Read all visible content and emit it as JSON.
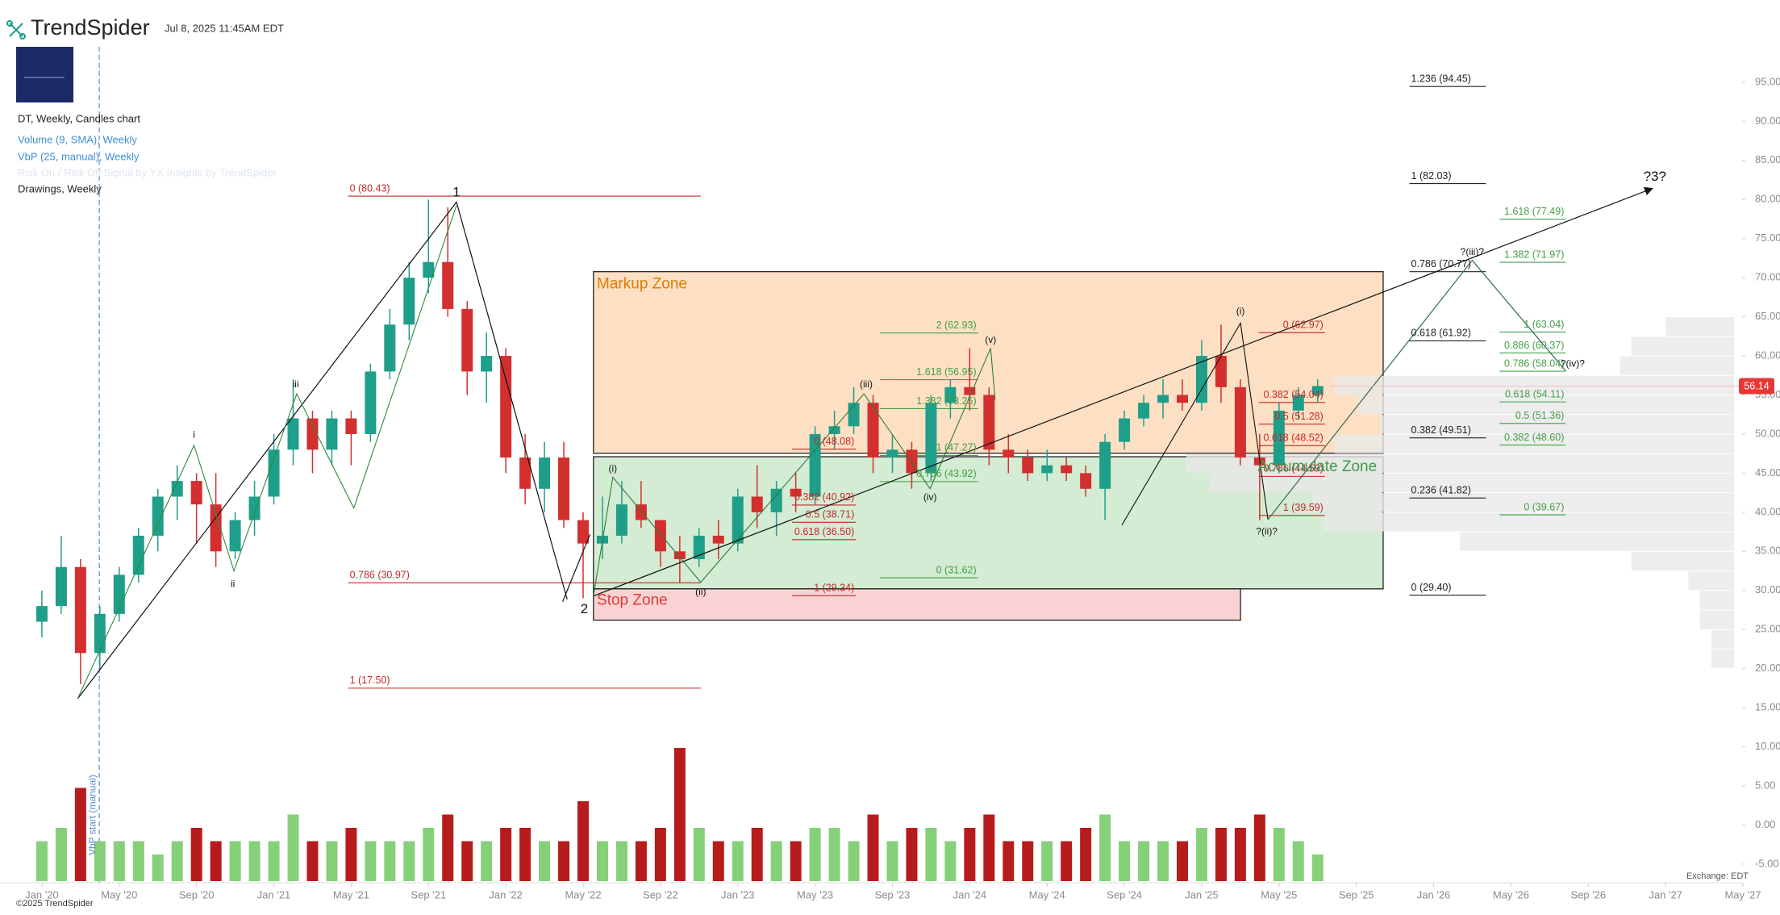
{
  "header": {
    "brand": "TrendSpider",
    "timestamp": "Jul 8, 2025 11:45AM EDT",
    "legend": [
      "DT, Weekly, Candles chart",
      "Volume (9, SMA), Weekly",
      "VbP (25, manual), Weekly",
      "Risk On / Risk Off Signal by YX Insights by TrendSpider",
      "Drawings, Weekly"
    ]
  },
  "footer": {
    "copyright": "©2025 TrendSpider",
    "exchange": "Exchange: EDT"
  },
  "chart_data": {
    "type": "candlestick",
    "x": [
      "2020-01",
      "2020-02",
      "2020-03",
      "2020-04",
      "2020-05",
      "2020-06",
      "2020-07",
      "2020-08",
      "2020-09",
      "2020-10",
      "2020-11",
      "2020-12",
      "2021-01",
      "2021-02",
      "2021-03",
      "2021-04",
      "2021-05",
      "2021-06",
      "2021-07",
      "2021-08",
      "2021-09",
      "2021-10",
      "2021-11",
      "2021-12",
      "2022-01",
      "2022-02",
      "2022-03",
      "2022-04",
      "2022-05",
      "2022-06",
      "2022-07",
      "2022-08",
      "2022-09",
      "2022-10",
      "2022-11",
      "2022-12",
      "2023-01",
      "2023-02",
      "2023-03",
      "2023-04",
      "2023-05",
      "2023-06",
      "2023-07",
      "2023-08",
      "2023-09",
      "2023-10",
      "2023-11",
      "2023-12",
      "2024-01",
      "2024-02",
      "2024-03",
      "2024-04",
      "2024-05",
      "2024-06",
      "2024-07",
      "2024-08",
      "2024-09",
      "2024-10",
      "2024-11",
      "2024-12",
      "2025-01",
      "2025-02",
      "2025-03",
      "2025-04",
      "2025-05",
      "2025-06",
      "2025-07"
    ],
    "open": [
      26,
      28,
      33,
      22,
      27,
      32,
      37,
      42,
      44,
      41,
      35,
      39,
      42,
      48,
      52,
      48,
      52,
      50,
      58,
      64,
      70,
      72,
      66,
      58,
      60,
      47,
      43,
      47,
      39,
      36,
      37,
      41,
      39,
      35,
      34,
      37,
      36,
      42,
      40,
      43,
      42,
      50,
      51,
      54,
      47,
      48,
      45,
      54,
      56,
      55,
      48,
      47,
      45,
      46,
      45,
      43,
      49,
      52,
      54,
      55,
      54,
      60,
      56,
      47,
      46,
      53,
      55
    ],
    "high": [
      30,
      37,
      34,
      28,
      33,
      38,
      43,
      46,
      45,
      45,
      40,
      44,
      50,
      57,
      53,
      53,
      53,
      59,
      66,
      72,
      80,
      79,
      67,
      63,
      61,
      50,
      49,
      49,
      40,
      42,
      44,
      44,
      39,
      37,
      38,
      39,
      43,
      46,
      44,
      45,
      51,
      53,
      56,
      55,
      50,
      49,
      55,
      57,
      61,
      56,
      50,
      48,
      48,
      47,
      46,
      50,
      53,
      55,
      57,
      57,
      62,
      64,
      57,
      50,
      54,
      56,
      57
    ],
    "low": [
      24,
      27,
      18,
      20,
      26,
      31,
      35,
      39,
      36,
      33,
      34,
      37,
      41,
      46,
      45,
      46,
      46,
      49,
      57,
      62,
      68,
      65,
      55,
      54,
      45,
      41,
      40,
      38,
      29,
      34,
      36,
      38,
      33,
      31,
      33,
      34,
      35,
      38,
      37,
      40,
      41,
      48,
      50,
      45,
      45,
      43,
      44,
      52,
      53,
      46,
      45,
      44,
      44,
      44,
      42,
      39,
      48,
      51,
      52,
      53,
      53,
      54,
      46,
      39,
      45,
      52,
      54
    ],
    "close": [
      28,
      33,
      22,
      27,
      32,
      37,
      42,
      44,
      41,
      35,
      39,
      42,
      48,
      52,
      48,
      52,
      50,
      58,
      64,
      70,
      72,
      66,
      58,
      60,
      47,
      43,
      47,
      39,
      36,
      37,
      41,
      39,
      35,
      34,
      37,
      36,
      42,
      40,
      43,
      42,
      50,
      51,
      54,
      47,
      48,
      45,
      54,
      56,
      55,
      48,
      47,
      45,
      46,
      45,
      43,
      49,
      52,
      54,
      55,
      54,
      60,
      56,
      47,
      46,
      53,
      55,
      56.14
    ],
    "volume": [
      3,
      4,
      7,
      3,
      3,
      3,
      2,
      3,
      4,
      3,
      3,
      3,
      3,
      5,
      3,
      3,
      4,
      3,
      3,
      3,
      4,
      5,
      3,
      3,
      4,
      4,
      3,
      3,
      6,
      3,
      3,
      3,
      4,
      10,
      4,
      3,
      3,
      4,
      3,
      3,
      4,
      4,
      3,
      5,
      3,
      4,
      4,
      3,
      4,
      5,
      3,
      3,
      3,
      3,
      4,
      5,
      3,
      3,
      3,
      3,
      4,
      4,
      4,
      5,
      4,
      3,
      2
    ],
    "up_color": "#1f9e8a",
    "down_color": "#d32f2f",
    "volume_up_color": "#86d07a",
    "volume_down_color": "#b71c1c",
    "xlim": [
      "2019-11",
      "2027-06"
    ],
    "xticks": [
      {
        "value": "2020-01",
        "label": "Jan '20"
      },
      {
        "value": "2020-05",
        "label": "May '20"
      },
      {
        "value": "2020-09",
        "label": "Sep '20"
      },
      {
        "value": "2021-01",
        "label": "Jan '21"
      },
      {
        "value": "2021-05",
        "label": "May '21"
      },
      {
        "value": "2021-09",
        "label": "Sep '21"
      },
      {
        "value": "2022-01",
        "label": "Jan '22"
      },
      {
        "value": "2022-05",
        "label": "May '22"
      },
      {
        "value": "2022-09",
        "label": "Sep '22"
      },
      {
        "value": "2023-01",
        "label": "Jan '23"
      },
      {
        "value": "2023-05",
        "label": "May '23"
      },
      {
        "value": "2023-09",
        "label": "Sep '23"
      },
      {
        "value": "2024-01",
        "label": "Jan '24"
      },
      {
        "value": "2024-05",
        "label": "May '24"
      },
      {
        "value": "2024-09",
        "label": "Sep '24"
      },
      {
        "value": "2025-01",
        "label": "Jan '25"
      },
      {
        "value": "2025-05",
        "label": "May '25"
      },
      {
        "value": "2025-09",
        "label": "Sep '25"
      },
      {
        "value": "2026-01",
        "label": "Jan '26"
      },
      {
        "value": "2026-05",
        "label": "May '26"
      },
      {
        "value": "2026-09",
        "label": "Sep '26"
      },
      {
        "value": "2027-01",
        "label": "Jan '27"
      },
      {
        "value": "2027-05",
        "label": "May '27"
      }
    ],
    "ylim": [
      -7,
      97
    ],
    "yticks": [
      {
        "value": 95,
        "label": "95.00"
      },
      {
        "value": 90,
        "label": "90.00"
      },
      {
        "value": 85,
        "label": "85.00"
      },
      {
        "value": 80,
        "label": "80.00"
      },
      {
        "value": 75,
        "label": "75.00"
      },
      {
        "value": 70,
        "label": "70.00"
      },
      {
        "value": 65,
        "label": "65.00"
      },
      {
        "value": 60,
        "label": "60.00"
      },
      {
        "value": 55,
        "label": "55.00"
      },
      {
        "value": 50,
        "label": "50.00"
      },
      {
        "value": 45,
        "label": "45.00"
      },
      {
        "value": 40,
        "label": "40.00"
      },
      {
        "value": 35,
        "label": "35.00"
      },
      {
        "value": 30,
        "label": "30.00"
      },
      {
        "value": 25,
        "label": "25.00"
      },
      {
        "value": 20,
        "label": "20.00"
      },
      {
        "value": 15,
        "label": "15.00"
      },
      {
        "value": 10,
        "label": "10.00"
      },
      {
        "value": 5,
        "label": "5.00"
      },
      {
        "value": 0,
        "label": "0.00"
      },
      {
        "value": -5,
        "label": "-5.00"
      }
    ],
    "vbp": {
      "bins": [
        20,
        22.5,
        25,
        27.5,
        30,
        32.5,
        35,
        37.5,
        40,
        42.5,
        45,
        47.5,
        50,
        52.5,
        55,
        57.5,
        60,
        62.5,
        65
      ],
      "values": [
        2,
        2,
        3,
        3,
        4,
        9,
        24,
        36,
        37,
        46,
        48,
        35,
        31,
        33,
        35,
        10,
        9,
        6
      ],
      "color": "#e9e9e9"
    },
    "vbp_start_label": "VbP start (manual)",
    "zones": [
      {
        "label": "Markup Zone",
        "top": 70.77,
        "bottom": 47.55,
        "color": "#fde0c4",
        "text_color": "#e07b00"
      },
      {
        "label": "Accumulate Zone",
        "top": 47.1,
        "bottom": 30.2,
        "color": "#d3ecd3",
        "text_color": "#3e9a4a"
      },
      {
        "label": "Stop Zone",
        "top": 30.2,
        "bottom": 26.2,
        "color": "#f9d3d3",
        "text_color": "#e53935"
      }
    ],
    "fibs": [
      {
        "color": "#c62828",
        "levels": [
          {
            "label": "0 (80.43)",
            "value": 80.43
          },
          {
            "label": "0.786 (30.97)",
            "value": 30.97
          },
          {
            "label": "1 (17.50)",
            "value": 17.5
          }
        ]
      },
      {
        "color": "#222222",
        "levels": [
          {
            "label": "1.236 (94.45)",
            "value": 94.45
          },
          {
            "label": "1 (82.03)",
            "value": 82.03
          },
          {
            "label": "0.786 (70.77)",
            "value": 70.77
          },
          {
            "label": "0.618 (61.92)",
            "value": 61.92
          },
          {
            "label": "0.382 (49.51)",
            "value": 49.51
          },
          {
            "label": "0.236 (41.82)",
            "value": 41.82
          },
          {
            "label": "0 (29.40)",
            "value": 29.4
          }
        ]
      },
      {
        "color": "#43a047",
        "levels": [
          {
            "label": "2 (62.93)",
            "value": 62.93
          },
          {
            "label": "1.618 (56.95)",
            "value": 56.95
          },
          {
            "label": "1.382 (53.25)",
            "value": 53.25
          },
          {
            "label": "1 (47.27)",
            "value": 47.27
          },
          {
            "label": "0.786 (43.92)",
            "value": 43.92
          },
          {
            "label": "0 (31.62)",
            "value": 31.62
          }
        ]
      },
      {
        "color": "#c62828",
        "levels": [
          {
            "label": "0 (48.08)",
            "value": 48.08
          },
          {
            "label": "0.382 (40.92)",
            "value": 40.92
          },
          {
            "label": "0.5 (38.71)",
            "value": 38.71
          },
          {
            "label": "0.618 (36.50)",
            "value": 36.5
          },
          {
            "label": "1 (29.34)",
            "value": 29.34
          }
        ]
      },
      {
        "color": "#c62828",
        "levels": [
          {
            "label": "0 (62.97)",
            "value": 62.97
          },
          {
            "label": "0.382 (54.04)",
            "value": 54.04
          },
          {
            "label": "0.5 (51.28)",
            "value": 51.28
          },
          {
            "label": "0.618 (48.52)",
            "value": 48.52
          },
          {
            "label": "0.786 (44.59)",
            "value": 44.59
          },
          {
            "label": "1 (39.59)",
            "value": 39.59
          }
        ]
      },
      {
        "color": "#43a047",
        "levels": [
          {
            "label": "1.618 (77.49)",
            "value": 77.49
          },
          {
            "label": "1.382 (71.97)",
            "value": 71.97
          },
          {
            "label": "1 (63.04)",
            "value": 63.04
          },
          {
            "label": "0.886 (60.37)",
            "value": 60.37
          },
          {
            "label": "0.786 (58.04)",
            "value": 58.04
          },
          {
            "label": "0.618 (54.11)",
            "value": 54.11
          },
          {
            "label": "0.5 (51.36)",
            "value": 51.36
          },
          {
            "label": "0.382 (48.60)",
            "value": 48.6
          },
          {
            "label": "0 (39.67)",
            "value": 39.67
          }
        ]
      }
    ],
    "wave_labels": [
      "1",
      "2",
      "i",
      "ii",
      "iii",
      "(i)",
      "(ii)",
      "(iii)",
      "(iv)",
      "(v)",
      "(i)",
      "?(ii)?",
      "?(iii)?",
      "?(iv)?",
      "?3?"
    ]
  }
}
